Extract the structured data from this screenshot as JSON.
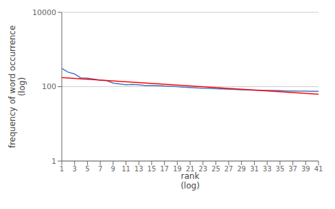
{
  "chart_data": {
    "type": "line",
    "title": "",
    "xlabel": "rank\n(log)",
    "ylabel": "frequency of word occurrence\n(log)",
    "log": "y",
    "grid": true,
    "xlim": [
      1,
      41
    ],
    "ylim": [
      1,
      10000
    ],
    "xticks": [
      1,
      3,
      5,
      7,
      9,
      11,
      13,
      15,
      17,
      19,
      21,
      23,
      25,
      27,
      29,
      31,
      33,
      35,
      37,
      39,
      41
    ],
    "yticks": [
      1,
      100,
      10000
    ],
    "series": [
      {
        "x": [
          1,
          2,
          3,
          4,
          5,
          6,
          7,
          8,
          9,
          10,
          11,
          12,
          13,
          14,
          15,
          16,
          17,
          18,
          19,
          20,
          21,
          22,
          23,
          24,
          25,
          26,
          27,
          28,
          29,
          30,
          31,
          32,
          33,
          34,
          35,
          36,
          37,
          38,
          39,
          40,
          41
        ],
        "values": [
          310,
          245,
          220,
          170,
          170,
          160,
          150,
          145,
          125,
          118,
          112,
          115,
          112,
          108,
          108,
          107,
          104,
          102,
          100,
          97,
          95,
          93,
          91,
          90,
          88,
          87,
          85,
          84,
          83,
          82,
          81,
          80,
          79,
          79,
          78,
          77,
          77,
          76,
          76,
          75,
          75
        ],
        "color": "#4472C4"
      },
      {
        "x": [
          1,
          41
        ],
        "values": [
          175,
          63
        ],
        "color": "#FF0000"
      }
    ]
  }
}
